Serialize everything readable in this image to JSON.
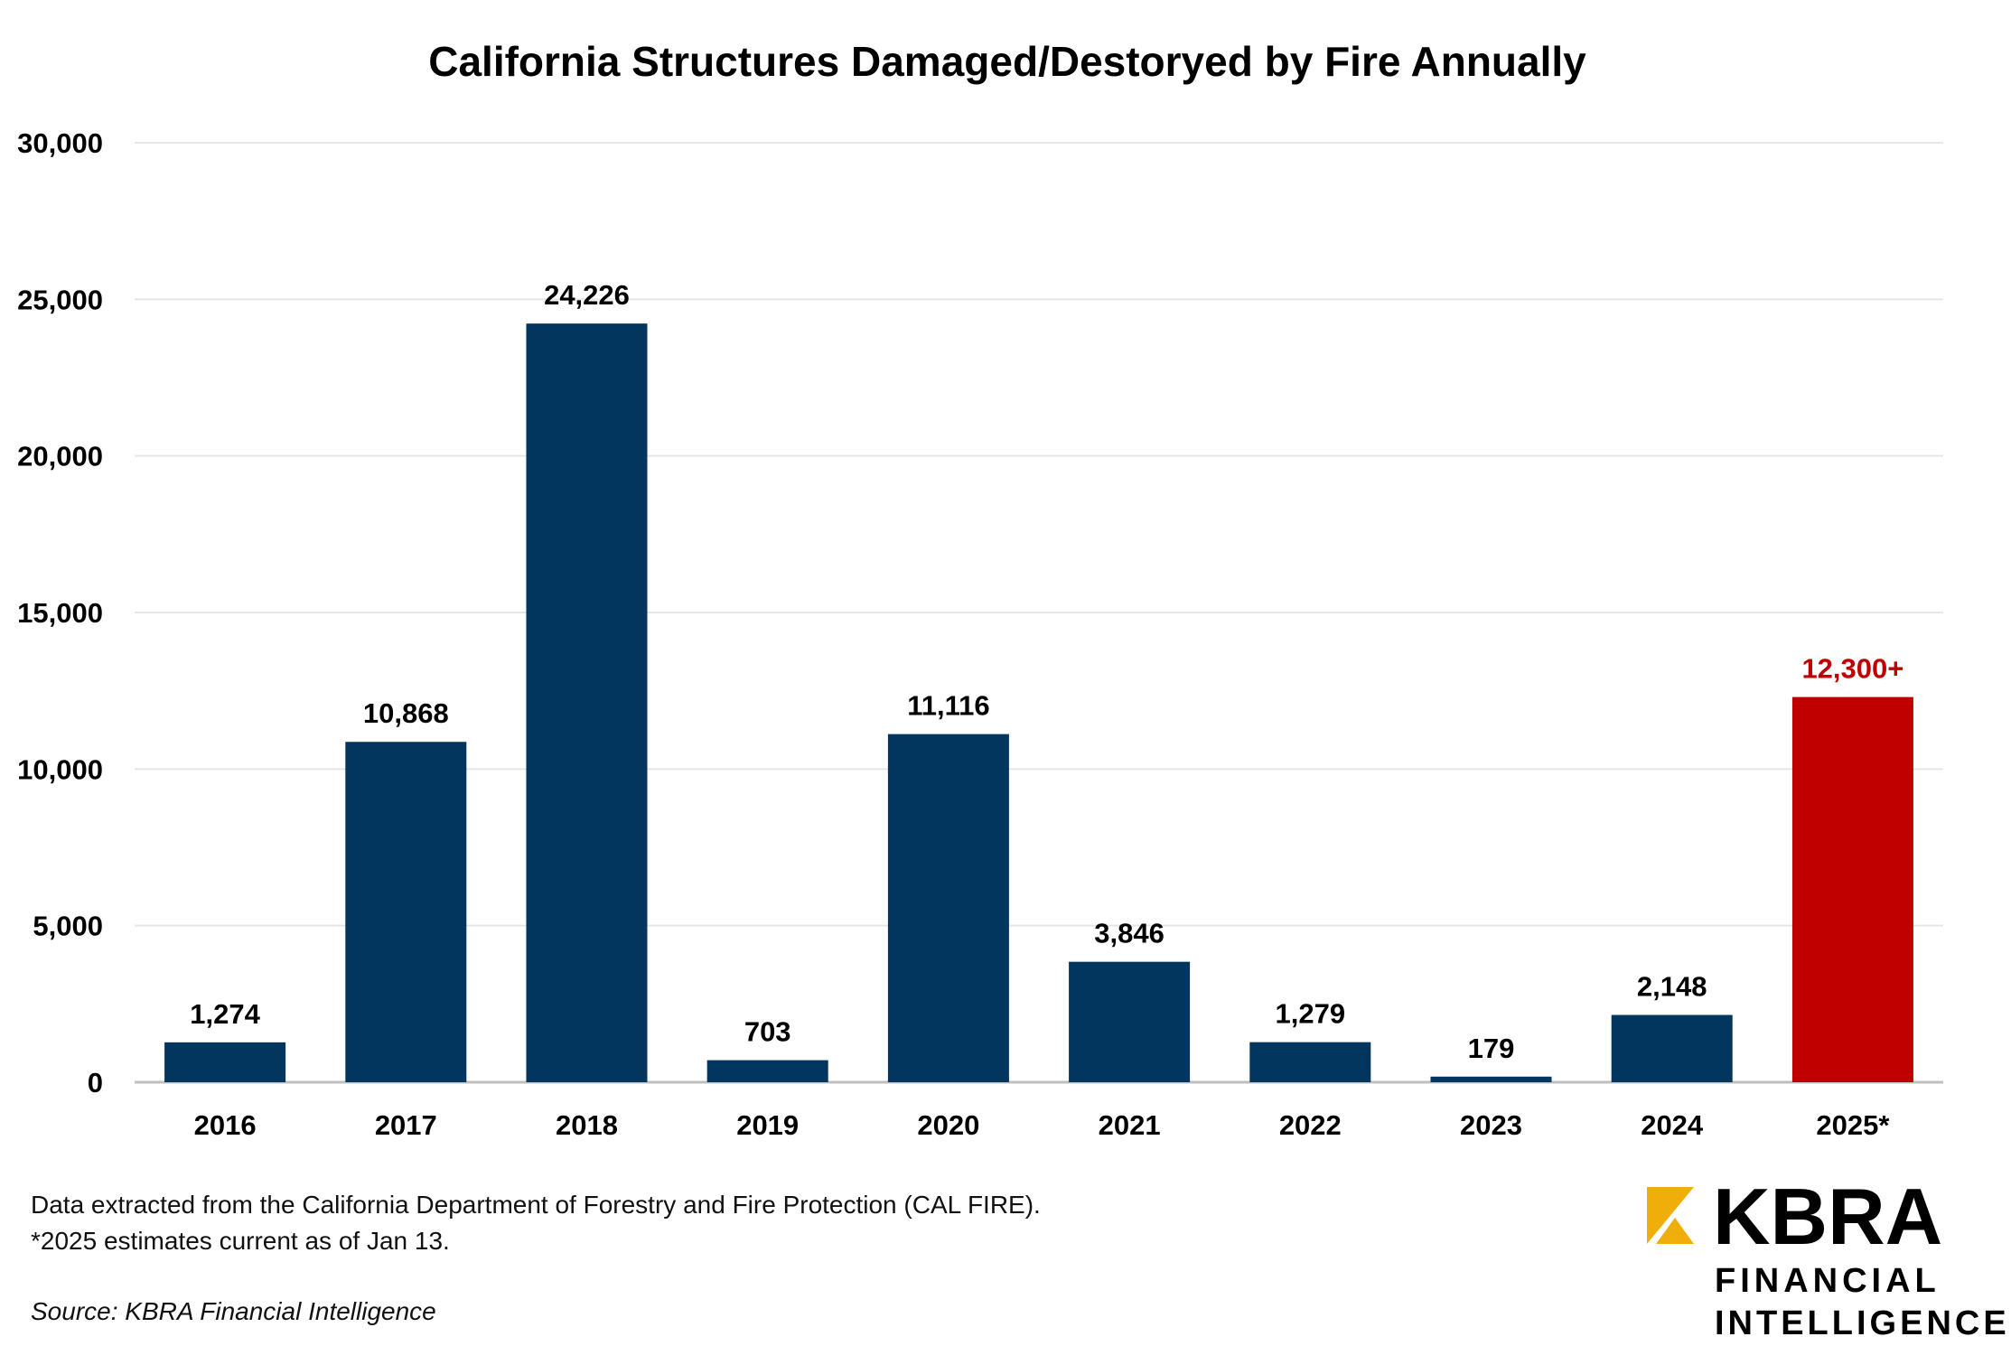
{
  "chart_data": {
    "type": "bar",
    "title": "California Structures Damaged/Destoryed by Fire Annually",
    "categories": [
      "2016",
      "2017",
      "2018",
      "2019",
      "2020",
      "2021",
      "2022",
      "2023",
      "2024",
      "2025*"
    ],
    "values": [
      1274,
      10868,
      24226,
      703,
      11116,
      3846,
      1279,
      179,
      2148,
      12300
    ],
    "data_labels": [
      "1,274",
      "10,868",
      "24,226",
      "703",
      "11,116",
      "3,846",
      "1,279",
      "179",
      "2,148",
      "12,300+"
    ],
    "xlabel": "",
    "ylabel": "",
    "ylim": [
      0,
      30000
    ],
    "yticks": [
      0,
      5000,
      10000,
      15000,
      20000,
      25000,
      30000
    ],
    "ytick_labels": [
      "0",
      "5,000",
      "10,000",
      "15,000",
      "20,000",
      "25,000",
      "30,000"
    ],
    "grid": true,
    "legend": "none",
    "colors": {
      "bar": "#02365E",
      "highlight": "#C00000",
      "highlight_label": "#C00000",
      "grid": "#E6E6E6",
      "axis": "#BFBFBF"
    },
    "highlight_index": 9
  },
  "footer": {
    "note1": "Data extracted from the California Department of Forestry and Fire Protection (CAL FIRE).",
    "note2": "*2025 estimates current as of Jan 13.",
    "source": "Source: KBRA Financial Intelligence"
  },
  "logo": {
    "line1": "KBRA",
    "line2": "FINANCIAL",
    "line3": "INTELLIGENCE",
    "accent": "#F0AE0A"
  }
}
